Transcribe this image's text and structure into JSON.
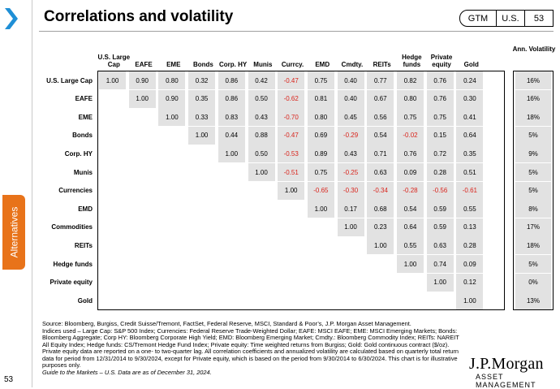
{
  "header": {
    "title": "Correlations and volatility",
    "badge_gtm": "GTM",
    "badge_region": "U.S.",
    "badge_page": "53"
  },
  "sidebar": {
    "tab_label": "Alternatives",
    "page_number": "53"
  },
  "columns": [
    "U.S. Large Cap",
    "EAFE",
    "EME",
    "Bonds",
    "Corp. HY",
    "Munis",
    "Currcy.",
    "EMD",
    "Cmdty.",
    "REITs",
    "Hedge funds",
    "Private equity",
    "Gold"
  ],
  "rows": [
    "U.S. Large Cap",
    "EAFE",
    "EME",
    "Bonds",
    "Corp. HY",
    "Munis",
    "Currencies",
    "EMD",
    "Commodities",
    "REITs",
    "Hedge funds",
    "Private equity",
    "Gold"
  ],
  "matrix": [
    [
      "1.00",
      "0.90",
      "0.80",
      "0.32",
      "0.86",
      "0.42",
      "-0.47",
      "0.75",
      "0.40",
      "0.77",
      "0.82",
      "0.76",
      "0.24"
    ],
    [
      "1.00",
      "0.90",
      "0.35",
      "0.86",
      "0.50",
      "-0.62",
      "0.81",
      "0.40",
      "0.67",
      "0.80",
      "0.76",
      "0.30"
    ],
    [
      "1.00",
      "0.33",
      "0.83",
      "0.43",
      "-0.70",
      "0.80",
      "0.45",
      "0.56",
      "0.75",
      "0.75",
      "0.41"
    ],
    [
      "1.00",
      "0.44",
      "0.88",
      "-0.47",
      "0.69",
      "-0.29",
      "0.54",
      "-0.02",
      "0.15",
      "0.64"
    ],
    [
      "1.00",
      "0.50",
      "-0.53",
      "0.89",
      "0.43",
      "0.71",
      "0.76",
      "0.72",
      "0.35"
    ],
    [
      "1.00",
      "-0.51",
      "0.75",
      "-0.25",
      "0.63",
      "0.09",
      "0.28",
      "0.51"
    ],
    [
      "1.00",
      "-0.65",
      "-0.30",
      "-0.34",
      "-0.28",
      "-0.56",
      "-0.61"
    ],
    [
      "1.00",
      "0.17",
      "0.68",
      "0.54",
      "0.59",
      "0.55"
    ],
    [
      "1.00",
      "0.23",
      "0.64",
      "0.59",
      "0.13"
    ],
    [
      "1.00",
      "0.55",
      "0.63",
      "0.28"
    ],
    [
      "1.00",
      "0.74",
      "0.09"
    ],
    [
      "1.00",
      "0.12"
    ],
    [
      "1.00"
    ]
  ],
  "volatility": {
    "title": "Ann. Volatility",
    "values": [
      "16%",
      "16%",
      "18%",
      "5%",
      "9%",
      "5%",
      "5%",
      "8%",
      "17%",
      "18%",
      "5%",
      "0%",
      "13%"
    ]
  },
  "colors": {
    "negative": "#d9241c",
    "cell_bg": "#e2e2e2",
    "tab": "#e8731a",
    "chevron": "#1f8fd6"
  },
  "footnote": {
    "source": "Source: Bloomberg, Burgiss, Credit Suisse/Tremont, FactSet, Federal Reserve, MSCI, Standard & Poor’s, J.P. Morgan Asset Management.",
    "indices": "Indices used – Large Cap: S&P 500 Index; Currencies: Federal Reserve Trade-Weighted Dollar; EAFE: MSCI EAFE; EME: MSCI Emerging Markets; Bonds: Bloomberg Aggregate; Corp HY: Bloomberg Corporate High Yield; EMD: Bloomberg Emerging Market; Cmdty.: Bloomberg Commodity Index; REITs: NAREIT All Equity Index; Hedge funds: CS/Tremont Hedge Fund Index; Private equity: Time weighted returns from Burgiss; Gold: Gold continuous contract ($/oz). Private equity data are reported on a one- to two-quarter lag. All correlation coefficients and annualized volatility are calculated based on quarterly total return data for period from 12/31/2014 to 9/30/2024, except for Private equity, which is based on the period from 9/30/2014 to 6/30/2024. This chart is for illustrative purposes only.",
    "guide": "Guide to the Markets – U.S. Data are as of December 31, 2024."
  },
  "logo": {
    "name": "J.P.Morgan",
    "sub": "ASSET MANAGEMENT"
  }
}
